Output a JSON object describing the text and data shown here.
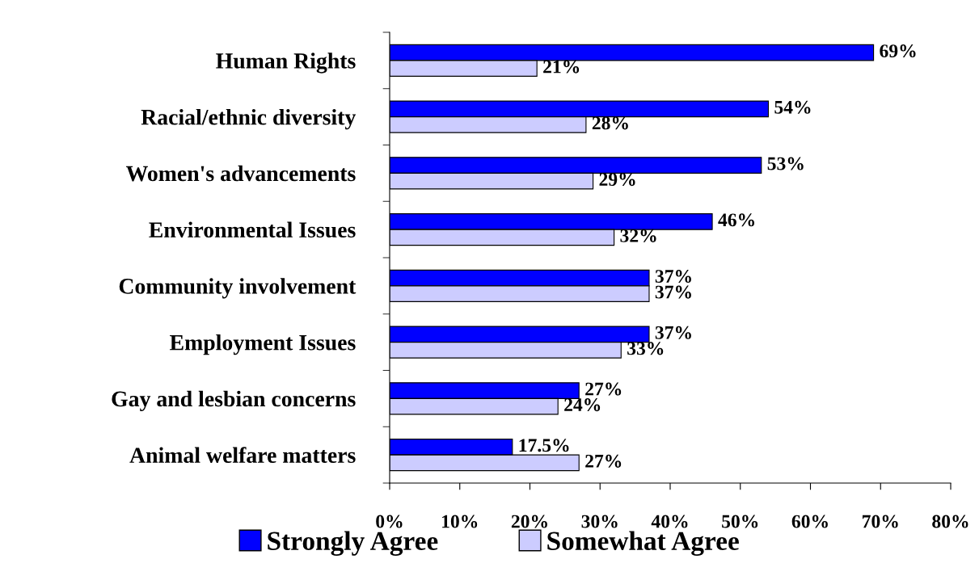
{
  "chart_data": {
    "type": "bar",
    "orientation": "horizontal",
    "categories": [
      "Human Rights",
      "Racial/ethnic diversity",
      "Women's advancements",
      "Environmental Issues",
      "Community involvement",
      "Employment Issues",
      "Gay and lesbian concerns",
      "Animal welfare matters"
    ],
    "series": [
      {
        "name": "Strongly Agree",
        "color": "#0000ff",
        "values": [
          69,
          54,
          53,
          46,
          37,
          37,
          27,
          17.5
        ],
        "value_labels": [
          "69%",
          "54%",
          "53%",
          "46%",
          "37%",
          "37%",
          "27%",
          "17.5%"
        ]
      },
      {
        "name": "Somewhat Agree",
        "color": "#ccccff",
        "values": [
          21,
          28,
          29,
          32,
          37,
          33,
          24,
          27
        ],
        "value_labels": [
          "21%",
          "28%",
          "29%",
          "32%",
          "37%",
          "33%",
          "24%",
          "27%"
        ]
      }
    ],
    "xlim": [
      0,
      80
    ],
    "xticks": [
      {
        "value": 0,
        "label": "0%"
      },
      {
        "value": 10,
        "label": "10%"
      },
      {
        "value": 20,
        "label": "20%"
      },
      {
        "value": 30,
        "label": "30%"
      },
      {
        "value": 40,
        "label": "40%"
      },
      {
        "value": 50,
        "label": "50%"
      },
      {
        "value": 60,
        "label": "60%"
      },
      {
        "value": 70,
        "label": "70%"
      },
      {
        "value": 80,
        "label": "80%"
      }
    ],
    "grid": false,
    "legend": "bottom"
  }
}
